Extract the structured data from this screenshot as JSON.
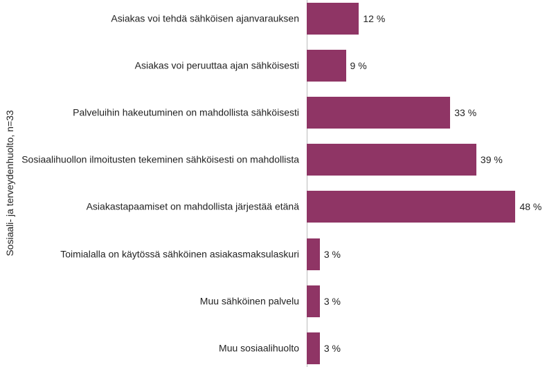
{
  "chart_data": {
    "type": "bar",
    "orientation": "horizontal",
    "y_label": "Sosiaali- ja terveydenhuolto, n=33",
    "categories": [
      "Asiakas voi tehdä sähköisen ajanvarauksen",
      "Asiakas voi peruuttaa ajan sähköisesti",
      "Palveluihin hakeutuminen on mahdollista sähköisesti",
      "Sosiaalihuollon ilmoitusten tekeminen sähköisesti on mahdollista",
      "Asiakastapaamiset on mahdollista järjestää etänä",
      "Toimialalla on käytössä sähköinen asiakasmaksulaskuri",
      "Muu sähköinen palvelu",
      "Muu sosiaalihuolto"
    ],
    "values": [
      12,
      9,
      33,
      39,
      48,
      3,
      3,
      3
    ],
    "value_labels": [
      "12 %",
      "9 %",
      "33 %",
      "39 %",
      "48 %",
      "3 %",
      "3 %",
      "3 %"
    ],
    "color": "#8f3565"
  }
}
